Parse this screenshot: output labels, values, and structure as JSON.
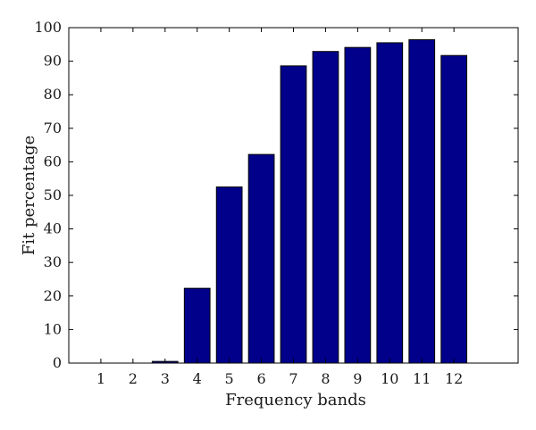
{
  "chart_data": {
    "type": "bar",
    "categories": [
      "1",
      "2",
      "3",
      "4",
      "5",
      "6",
      "7",
      "8",
      "9",
      "10",
      "11",
      "12"
    ],
    "values": [
      0,
      0,
      0.5,
      22.3,
      52.5,
      62.2,
      88.6,
      92.9,
      94.1,
      95.5,
      96.4,
      91.7
    ],
    "title": "",
    "xlabel": "Frequency bands",
    "ylabel": "Fit percentage",
    "ylim": [
      0,
      100
    ],
    "xlim": [
      0,
      14
    ],
    "yticks": [
      "0",
      "10",
      "20",
      "30",
      "40",
      "50",
      "60",
      "70",
      "80",
      "90",
      "100"
    ],
    "grid": false,
    "bar_color": "#00008b",
    "edge_color": "#000000"
  }
}
